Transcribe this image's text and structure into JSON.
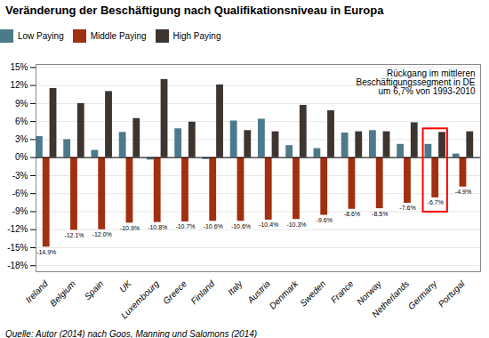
{
  "chart_data": {
    "type": "bar",
    "title": "Veränderung der Beschäftigung nach Qualifikationsniveau in Europa",
    "categories": [
      "Ireland",
      "Belgium",
      "Spain",
      "UK",
      "Luxembourg",
      "Greece",
      "Finland",
      "Italy",
      "Austria",
      "Denmark",
      "Sweden",
      "France",
      "Norway",
      "Netherlands",
      "Germany",
      "Portugal"
    ],
    "series": [
      {
        "name": "Low Paying",
        "color": "#4d7a8a",
        "values": [
          3.5,
          3.0,
          1.2,
          4.2,
          -0.4,
          4.8,
          -0.3,
          6.1,
          6.4,
          2.0,
          1.5,
          4.1,
          4.5,
          2.2,
          2.2,
          0.6
        ]
      },
      {
        "name": "Middle Paying",
        "color": "#a03010",
        "values": [
          -14.9,
          -12.1,
          -12.0,
          -10.9,
          -10.8,
          -10.7,
          -10.6,
          -10.6,
          -10.4,
          -10.3,
          -9.6,
          -8.6,
          -8.5,
          -7.6,
          -6.7,
          -4.9
        ],
        "data_labels": true,
        "value_labels": [
          "-14.9%",
          "-12.1%",
          "-12.0%",
          "-10.9%",
          "-10.8%",
          "-10.7%",
          "-10.6%",
          "-10.6%",
          "-10.4%",
          "-10.3%",
          "-9.6%",
          "-8.6%",
          "-8.5%",
          "-7.6%",
          "-6.7%",
          "-4.9%"
        ]
      },
      {
        "name": "High Paying",
        "color": "#3d3530",
        "values": [
          11.5,
          9.0,
          11.0,
          6.5,
          13.0,
          5.9,
          12.1,
          4.5,
          4.3,
          8.7,
          7.8,
          4.3,
          4.3,
          5.8,
          4.2,
          4.3
        ]
      }
    ],
    "ylim": [
      -19,
      15.5
    ],
    "yticks": [
      {
        "value": -18,
        "label": "-18%"
      },
      {
        "value": -15,
        "label": "-15%"
      },
      {
        "value": -12,
        "label": "-12%"
      },
      {
        "value": -9,
        "label": "-9%"
      },
      {
        "value": -6,
        "label": "-6%"
      },
      {
        "value": -3,
        "label": "-3%"
      },
      {
        "value": 0,
        "label": "0%"
      },
      {
        "value": 3,
        "label": "3%"
      },
      {
        "value": 6,
        "label": "6%"
      },
      {
        "value": 9,
        "label": "9%"
      },
      {
        "value": 12,
        "label": "12%"
      },
      {
        "value": 15,
        "label": "15%"
      }
    ],
    "grid": true,
    "legend": "top",
    "annotations": [
      {
        "text": "Rückgang im mittleren\nBeschäftigungssegment in DE\num 6,7% von 1993-2010",
        "category": "Germany",
        "color": "red"
      }
    ],
    "source": "Quelle: Autor (2014) nach Goos, Manning und Salomons (2014)"
  }
}
